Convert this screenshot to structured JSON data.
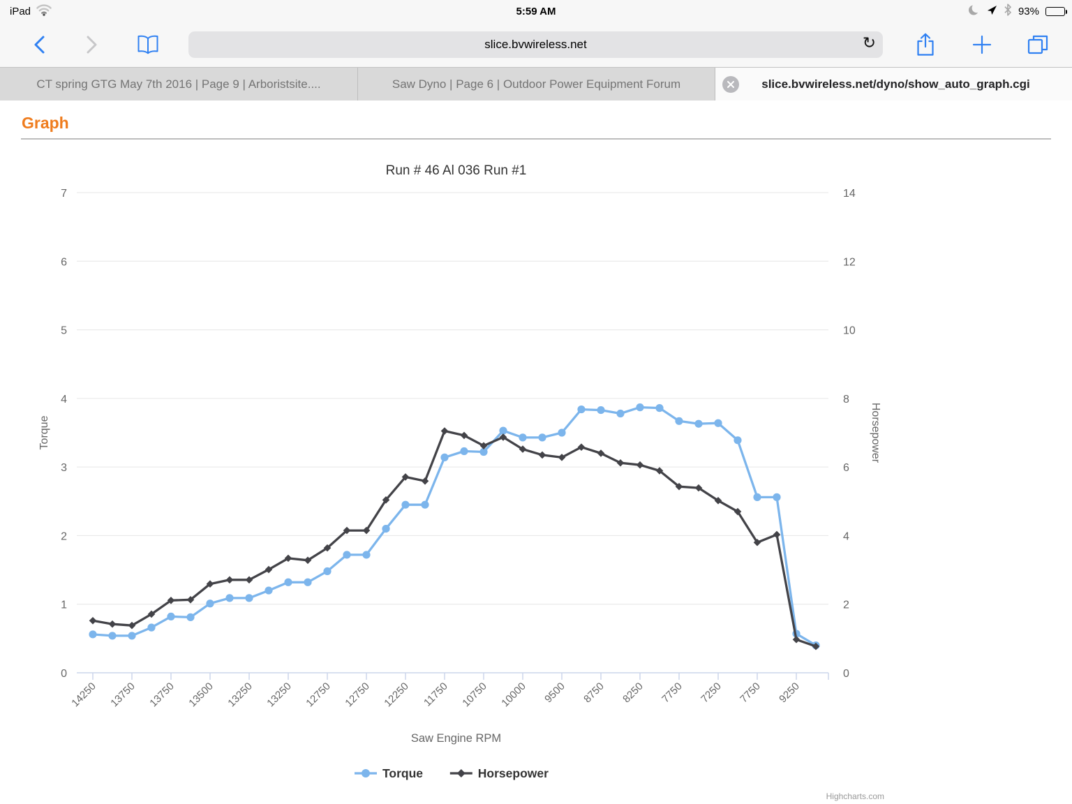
{
  "status_bar": {
    "device": "iPad",
    "time": "5:59 AM",
    "battery_percent": "93%"
  },
  "toolbar": {
    "url": "slice.bvwireless.net",
    "reload_glyph": "↻"
  },
  "tabs": [
    {
      "label": "CT spring GTG May 7th 2016 | Page 9 | Arboristsite....",
      "active": false
    },
    {
      "label": "Saw Dyno | Page 6 | Outdoor Power Equipment Forum",
      "active": false
    },
    {
      "label": "slice.bvwireless.net/dyno/show_auto_graph.cgi",
      "active": true
    }
  ],
  "page": {
    "heading": "Graph"
  },
  "chart_data": {
    "type": "line",
    "title": "Run # 46 Al 036 Run #1",
    "xlabel": "Saw Engine RPM",
    "x_tick_labels": [
      "14250",
      "13750",
      "13750",
      "13500",
      "13250",
      "13250",
      "12750",
      "12750",
      "12250",
      "11750",
      "10750",
      "10000",
      "9500",
      "8750",
      "8250",
      "7750",
      "7250",
      "7750",
      "9250"
    ],
    "label_every_n_points": 2,
    "yaxis_left": {
      "title": "Torque",
      "min": 0,
      "max": 7,
      "tick_step": 1
    },
    "yaxis_right": {
      "title": "Horsepower",
      "min": 0,
      "max": 14,
      "tick_step": 2
    },
    "grid": true,
    "legend_position": "bottom-center",
    "credits": "Highcharts.com",
    "colors": {
      "torque": "#7cb5ec",
      "horsepower": "#434348",
      "grid": "#e6e6e6",
      "axis_line": "#ccd6eb",
      "label_text": "#666666",
      "title_text": "#333333"
    },
    "series": [
      {
        "name": "Torque",
        "axis": "left",
        "marker": "circle",
        "color": "#7cb5ec",
        "values": [
          0.56,
          0.54,
          0.54,
          0.66,
          0.82,
          0.81,
          1.01,
          1.09,
          1.09,
          1.2,
          1.32,
          1.32,
          1.48,
          1.72,
          1.72,
          2.1,
          2.45,
          2.45,
          3.14,
          3.23,
          3.22,
          3.53,
          3.43,
          3.43,
          3.5,
          3.84,
          3.83,
          3.78,
          3.87,
          3.86,
          3.67,
          3.63,
          3.64,
          3.39,
          2.56,
          2.56,
          0.57,
          0.4
        ]
      },
      {
        "name": "Horsepower",
        "axis": "right",
        "marker": "diamond",
        "color": "#434348",
        "values": [
          1.52,
          1.42,
          1.38,
          1.71,
          2.11,
          2.13,
          2.59,
          2.71,
          2.71,
          3.01,
          3.34,
          3.28,
          3.64,
          4.15,
          4.15,
          5.04,
          5.71,
          5.59,
          7.05,
          6.92,
          6.62,
          6.87,
          6.52,
          6.35,
          6.28,
          6.58,
          6.4,
          6.12,
          6.06,
          5.89,
          5.43,
          5.39,
          5.02,
          4.7,
          3.8,
          4.03,
          0.97,
          0.77
        ]
      }
    ]
  }
}
